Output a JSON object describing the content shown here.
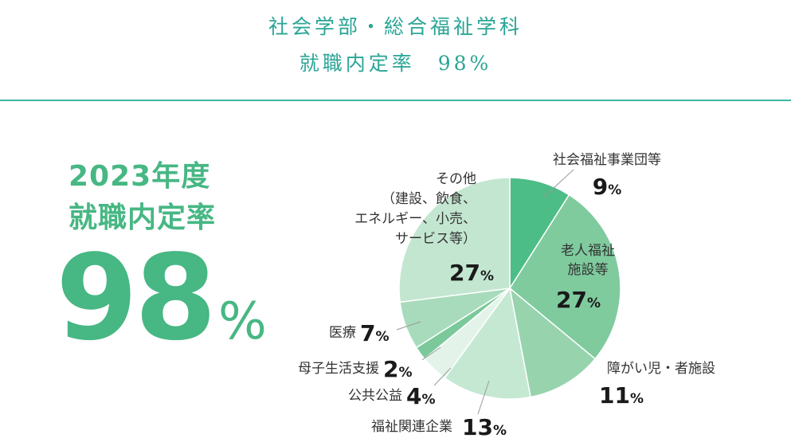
{
  "header": {
    "line1": "社会学部・総合福祉学科",
    "line2": "就職内定率　98%"
  },
  "summary": {
    "year_label": "2023年度",
    "title": "就職内定率",
    "rate_value": "98",
    "rate_unit": "%"
  },
  "colors": {
    "accent_teal": "#2aa596",
    "accent_green": "#47b784"
  },
  "chart_data": {
    "type": "pie",
    "start_angle_deg": 0,
    "direction": "clockwise",
    "unit": "%",
    "slices": [
      {
        "label_lines": [
          "社会福祉事業団等"
        ],
        "value": 9,
        "color": "#4dbd87"
      },
      {
        "label_lines": [
          "老人福祉",
          "施設等"
        ],
        "value": 27,
        "color": "#7fcb9e"
      },
      {
        "label_lines": [
          "障がい児・者施設"
        ],
        "value": 11,
        "color": "#97d4ae"
      },
      {
        "label_lines": [
          "福祉関連企業"
        ],
        "value": 13,
        "color": "#c5e8d3"
      },
      {
        "label_lines": [
          "公共公益"
        ],
        "value": 4,
        "color": "#e3f3e9"
      },
      {
        "label_lines": [
          "母子生活支援"
        ],
        "value": 2,
        "color": "#7bc99a"
      },
      {
        "label_lines": [
          "医療"
        ],
        "value": 7,
        "color": "#a8dbbc"
      },
      {
        "label_lines": [
          "その他",
          "（建設、飲食、",
          "エネルギー、小売、",
          "サービス等）"
        ],
        "value": 27,
        "color": "#c3e6d0"
      }
    ]
  }
}
